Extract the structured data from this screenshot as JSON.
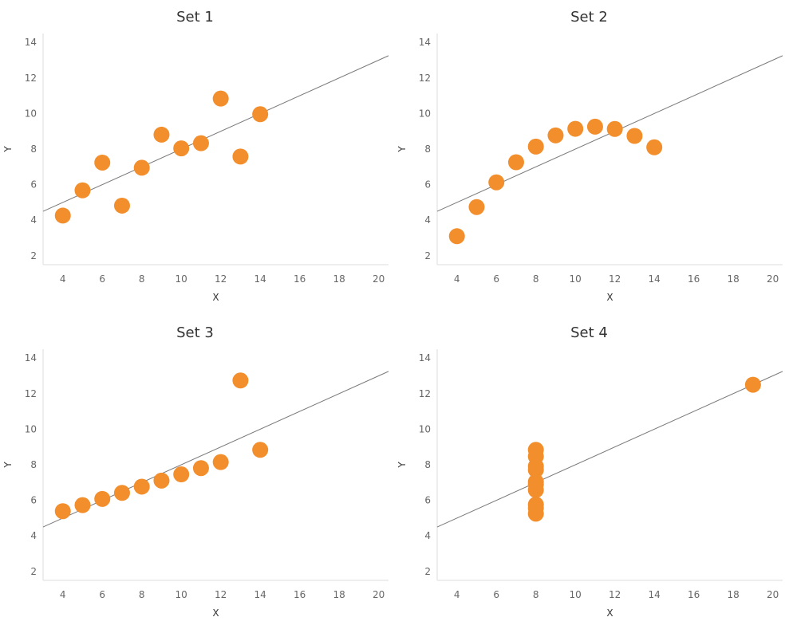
{
  "chart_data": [
    {
      "type": "scatter",
      "title": "Set 1",
      "xlabel": "X",
      "ylabel": "Y",
      "xlim": [
        3,
        20.5
      ],
      "ylim": [
        1.5,
        14.5
      ],
      "xticks": [
        "4",
        "6",
        "8",
        "10",
        "12",
        "14",
        "16",
        "18",
        "20"
      ],
      "yticks": [
        "2",
        "4",
        "6",
        "8",
        "10",
        "12",
        "14"
      ],
      "trend": {
        "slope": 0.5,
        "intercept": 3.0
      },
      "color": "#f28e2b",
      "points": [
        {
          "x": 4,
          "y": 4.26
        },
        {
          "x": 5,
          "y": 5.68
        },
        {
          "x": 6,
          "y": 7.24
        },
        {
          "x": 7,
          "y": 4.82
        },
        {
          "x": 8,
          "y": 6.95
        },
        {
          "x": 9,
          "y": 8.81
        },
        {
          "x": 10,
          "y": 8.04
        },
        {
          "x": 11,
          "y": 8.33
        },
        {
          "x": 12,
          "y": 10.84
        },
        {
          "x": 13,
          "y": 7.58
        },
        {
          "x": 14,
          "y": 9.96
        }
      ]
    },
    {
      "type": "scatter",
      "title": "Set 2",
      "xlabel": "X",
      "ylabel": "Y",
      "xlim": [
        3,
        20.5
      ],
      "ylim": [
        1.5,
        14.5
      ],
      "xticks": [
        "4",
        "6",
        "8",
        "10",
        "12",
        "14",
        "16",
        "18",
        "20"
      ],
      "yticks": [
        "2",
        "4",
        "6",
        "8",
        "10",
        "12",
        "14"
      ],
      "trend": {
        "slope": 0.5,
        "intercept": 3.0
      },
      "color": "#f28e2b",
      "points": [
        {
          "x": 4,
          "y": 3.1
        },
        {
          "x": 5,
          "y": 4.74
        },
        {
          "x": 6,
          "y": 6.13
        },
        {
          "x": 7,
          "y": 7.26
        },
        {
          "x": 8,
          "y": 8.14
        },
        {
          "x": 9,
          "y": 8.77
        },
        {
          "x": 10,
          "y": 9.14
        },
        {
          "x": 11,
          "y": 9.26
        },
        {
          "x": 12,
          "y": 9.13
        },
        {
          "x": 13,
          "y": 8.74
        },
        {
          "x": 14,
          "y": 8.1
        }
      ]
    },
    {
      "type": "scatter",
      "title": "Set 3",
      "xlabel": "X",
      "ylabel": "Y",
      "xlim": [
        3,
        20.5
      ],
      "ylim": [
        1.5,
        14.5
      ],
      "xticks": [
        "4",
        "6",
        "8",
        "10",
        "12",
        "14",
        "16",
        "18",
        "20"
      ],
      "yticks": [
        "2",
        "4",
        "6",
        "8",
        "10",
        "12",
        "14"
      ],
      "trend": {
        "slope": 0.5,
        "intercept": 3.0
      },
      "color": "#f28e2b",
      "points": [
        {
          "x": 4,
          "y": 5.39
        },
        {
          "x": 5,
          "y": 5.73
        },
        {
          "x": 6,
          "y": 6.08
        },
        {
          "x": 7,
          "y": 6.42
        },
        {
          "x": 8,
          "y": 6.77
        },
        {
          "x": 9,
          "y": 7.11
        },
        {
          "x": 10,
          "y": 7.46
        },
        {
          "x": 11,
          "y": 7.81
        },
        {
          "x": 12,
          "y": 8.15
        },
        {
          "x": 13,
          "y": 12.74
        },
        {
          "x": 14,
          "y": 8.84
        }
      ]
    },
    {
      "type": "scatter",
      "title": "Set 4",
      "xlabel": "X",
      "ylabel": "Y",
      "xlim": [
        3,
        20.5
      ],
      "ylim": [
        1.5,
        14.5
      ],
      "xticks": [
        "4",
        "6",
        "8",
        "10",
        "12",
        "14",
        "16",
        "18",
        "20"
      ],
      "yticks": [
        "2",
        "4",
        "6",
        "8",
        "10",
        "12",
        "14"
      ],
      "trend": {
        "slope": 0.5,
        "intercept": 3.0
      },
      "color": "#f28e2b",
      "points": [
        {
          "x": 8,
          "y": 6.58
        },
        {
          "x": 8,
          "y": 5.76
        },
        {
          "x": 8,
          "y": 7.71
        },
        {
          "x": 8,
          "y": 8.84
        },
        {
          "x": 8,
          "y": 8.47
        },
        {
          "x": 8,
          "y": 7.04
        },
        {
          "x": 8,
          "y": 5.25
        },
        {
          "x": 19,
          "y": 12.5
        },
        {
          "x": 8,
          "y": 5.56
        },
        {
          "x": 8,
          "y": 7.91
        },
        {
          "x": 8,
          "y": 6.89
        }
      ]
    }
  ]
}
